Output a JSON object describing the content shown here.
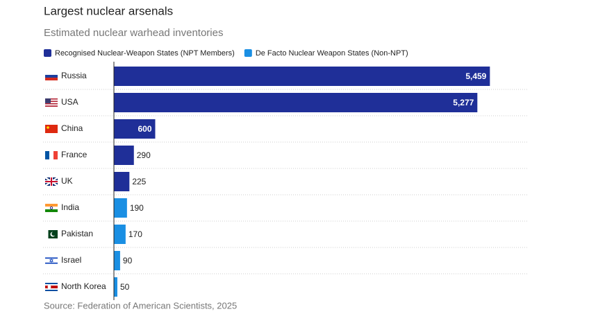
{
  "chart_data": {
    "type": "bar",
    "orientation": "horizontal",
    "title": "Largest nuclear arsenals",
    "subtitle": "Estimated nuclear warhead inventories",
    "source": "Source: Federation of American Scientists, 2025",
    "categories": [
      "Russia",
      "USA",
      "China",
      "France",
      "UK",
      "India",
      "Pakistan",
      "Israel",
      "North Korea"
    ],
    "series": [
      {
        "name": "Recognised Nuclear-Weapon States (NPT Members)",
        "color": "#1f2f98",
        "values": [
          5459,
          5277,
          600,
          290,
          225,
          null,
          null,
          null,
          null
        ],
        "value_labels": [
          "5,459",
          "5,277",
          "600",
          "290",
          "225",
          null,
          null,
          null,
          null
        ]
      },
      {
        "name": "De Facto Nuclear Weapon States (Non-NPT)",
        "color": "#1a8fe3",
        "values": [
          null,
          null,
          null,
          null,
          null,
          190,
          170,
          90,
          50
        ],
        "value_labels": [
          null,
          null,
          null,
          null,
          null,
          "190",
          "170",
          "90",
          "50"
        ]
      }
    ],
    "xlim": [
      0,
      6000
    ]
  }
}
